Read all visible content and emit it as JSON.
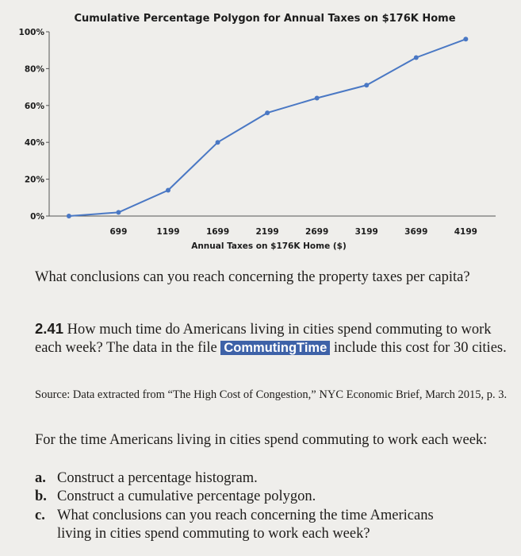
{
  "chart_data": {
    "type": "line",
    "title": "Cumulative Percentage Polygon for Annual Taxes on $176K Home",
    "xlabel": "Annual Taxes on $176K Home ($)",
    "ylabel": "",
    "x": [
      199,
      699,
      1199,
      1699,
      2199,
      2699,
      3199,
      3699,
      4199
    ],
    "x_tick_labels": [
      "699",
      "1199",
      "1699",
      "2199",
      "2699",
      "3199",
      "3699",
      "4199"
    ],
    "y_tick_labels": [
      "0%",
      "20%",
      "40%",
      "60%",
      "80%",
      "100%"
    ],
    "ylim": [
      0,
      100
    ],
    "series": [
      {
        "values": [
          0,
          2,
          14,
          40,
          56,
          64,
          71,
          86,
          96
        ],
        "color": "#4a78c4"
      }
    ],
    "grid": false
  },
  "question_intro": "What conclusions can you reach concerning the property taxes per capita?",
  "problem": {
    "number": "2.41",
    "text_before": "How much time do Americans living in cities spend commuting to work each week? The data in the file",
    "file_name": "CommutingTime",
    "text_after": "include this cost for 30 cities."
  },
  "source": "Source: Data extracted from “The High Cost of Congestion,” NYC Economic Brief, March 2015, p. 3.",
  "lead": "For the time Americans living in cities spend commuting to work each week:",
  "parts": [
    {
      "letter": "a.",
      "text": "Construct a percentage histogram."
    },
    {
      "letter": "b.",
      "text": "Construct a cumulative percentage polygon."
    },
    {
      "letter": "c.",
      "text": "What conclusions can you reach concerning the time Americans",
      "text2": "living in cities spend commuting to work each week?"
    }
  ]
}
